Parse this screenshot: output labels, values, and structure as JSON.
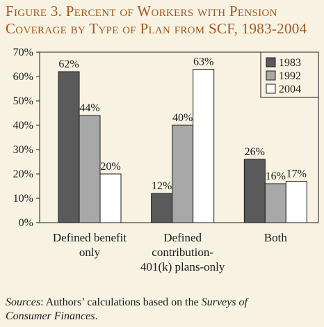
{
  "title_line1": "Figure 3. Percent of Workers with Pension",
  "title_line2": "Coverage by Type of Plan from SCF, 1983-2004",
  "source": {
    "label": "Sources",
    "text1": ": Authors’ calculations based on the ",
    "italic1": "Surveys of",
    "italic2": "Consumer Finances",
    "end": "."
  },
  "colors": {
    "s1983": "#5a5a5a",
    "s1992": "#a8a8a8",
    "s2004": "#ffffff",
    "title": "#a0581e"
  },
  "chart_data": {
    "type": "bar",
    "categories": [
      [
        "Defined benefit",
        "only"
      ],
      [
        "Defined",
        "contribution-",
        "401(k) plans-only"
      ],
      [
        "Both"
      ]
    ],
    "series": [
      {
        "name": "1983",
        "values": [
          62,
          12,
          26
        ],
        "labels": [
          "62%",
          "12%",
          "26%"
        ]
      },
      {
        "name": "1992",
        "values": [
          44,
          40,
          16
        ],
        "labels": [
          "44%",
          "40%",
          "16%"
        ]
      },
      {
        "name": "2004",
        "values": [
          20,
          63,
          17
        ],
        "labels": [
          "20%",
          "63%",
          "17%"
        ]
      }
    ],
    "ylim": [
      0,
      70
    ],
    "yticks": [
      "0%",
      "10%",
      "20%",
      "30%",
      "40%",
      "50%",
      "60%",
      "70%"
    ],
    "legend_position": "top-right",
    "grid": false
  }
}
